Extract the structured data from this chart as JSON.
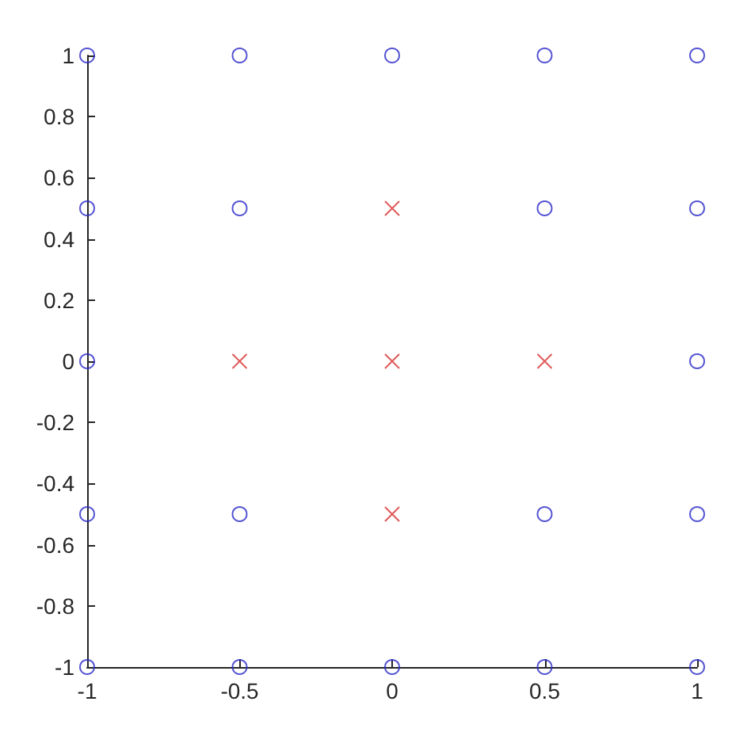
{
  "chart_data": {
    "type": "scatter",
    "grid": false,
    "xlim": [
      -1,
      1
    ],
    "xticks": [
      -1,
      -0.5,
      0,
      0.5,
      1
    ],
    "ylim": [
      -1,
      1
    ],
    "yticks": [
      -1,
      -0.8,
      -0.6,
      -0.4,
      -0.2,
      0,
      0.2,
      0.4,
      0.6,
      0.8,
      1
    ],
    "series": [
      {
        "color": "#2a2ac8",
        "marker": "circle",
        "x": [
          -1,
          -0.5,
          0,
          0.5,
          1,
          -1,
          -0.5,
          0.5,
          1,
          -1,
          1,
          -1,
          -0.5,
          0.5,
          1,
          -1,
          -0.5,
          0,
          0.5,
          1
        ],
        "values": [
          1,
          1,
          1,
          1,
          1,
          0.5,
          0.5,
          0.5,
          0.5,
          0,
          0,
          -0.5,
          -0.5,
          -0.5,
          -0.5,
          -1,
          -1,
          -1,
          -1,
          -1
        ]
      },
      {
        "color": "#d93030",
        "marker": "cross",
        "x": [
          0,
          -0.5,
          0,
          0.5,
          0
        ],
        "values": [
          0.5,
          0,
          0,
          0,
          -0.5
        ]
      }
    ]
  }
}
